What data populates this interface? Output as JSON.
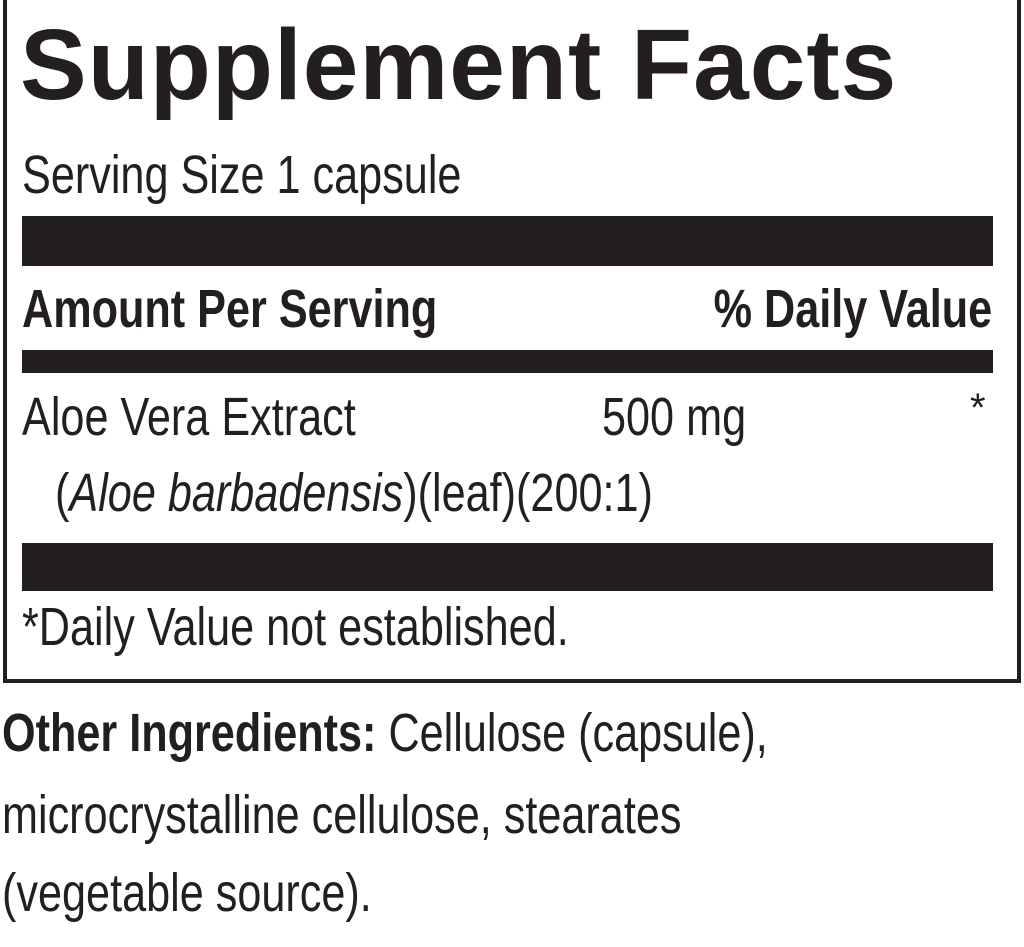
{
  "label": {
    "title": "Supplement Facts",
    "serving_size": "Serving Size 1 capsule",
    "header_left": "Amount Per Serving",
    "header_right": "% Daily Value",
    "ingredients": [
      {
        "name": "Aloe Vera Extract",
        "amount": "500 mg",
        "daily_value": "*",
        "detail_open": "(",
        "detail_italic": "Aloe barbadensis",
        "detail_rest": ")(leaf)(200:1)"
      }
    ],
    "footnote": "*Daily Value not established."
  },
  "other_ingredients": {
    "label": "Other Ingredients:",
    "line1": " Cellulose (capsule),",
    "line2": "microcrystalline cellulose, stearates",
    "line3": "(vegetable source)."
  }
}
